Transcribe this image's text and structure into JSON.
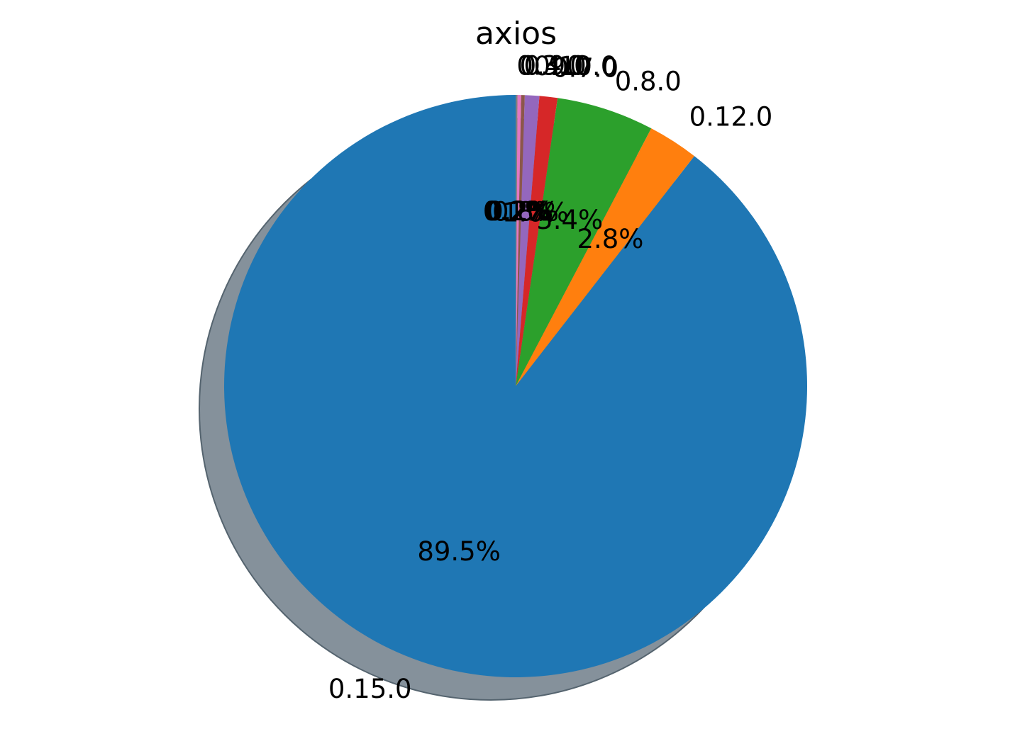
{
  "chart_data": {
    "type": "pie",
    "title": "axios",
    "start_angle_deg": 90,
    "direction": "counterclockwise",
    "shadow": true,
    "slices": [
      {
        "label": "0.15.0",
        "value": 89.5,
        "pct_label": "89.5%",
        "color": "#1f77b4"
      },
      {
        "label": "0.12.0",
        "value": 2.8,
        "pct_label": "2.8%",
        "color": "#ff7f0e"
      },
      {
        "label": "0.8.0",
        "value": 5.4,
        "pct_label": "5.4%",
        "color": "#2ca02c"
      },
      {
        "label": "0.7.0",
        "value": 1.0,
        "pct_label": "1.0%",
        "color": "#d62728"
      },
      {
        "label": "0.10.0",
        "value": 0.8,
        "pct_label": "0.8%",
        "color": "#9467bd"
      },
      {
        "label": "0.9.0",
        "value": 0.2,
        "pct_label": "0.2%",
        "color": "#8c564b"
      },
      {
        "label": "0.4.0",
        "value": 0.2,
        "pct_label": "0.2%",
        "color": "#e377c2"
      },
      {
        "label": "0.3.0",
        "value": 0.1,
        "pct_label": "0.1%",
        "color": "#7f7f7f"
      }
    ]
  }
}
